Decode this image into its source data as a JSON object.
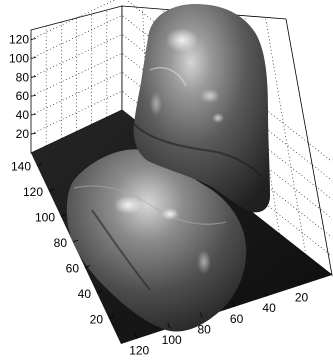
{
  "chart_data": {
    "type": "surface",
    "title": "",
    "xlabel": "",
    "ylabel": "",
    "zlabel": "",
    "grid": true,
    "colormap": "gray",
    "shading": "interp",
    "lighting": "phong",
    "view": "3-D rotated, raised viewing angle",
    "x_axis": {
      "lim": [
        0,
        130
      ],
      "ticks": [
        120,
        100,
        80,
        60,
        40,
        20
      ]
    },
    "y_axis": {
      "lim": [
        0,
        150
      ],
      "ticks": [
        140,
        120,
        100,
        80,
        60,
        40,
        20
      ]
    },
    "z_axis": {
      "lim": [
        0,
        130
      ],
      "ticks": [
        120,
        100,
        80,
        60,
        40,
        20
      ]
    },
    "surface_description": "height map of two rounded mounds rising from a flat floor (z = 0)",
    "surface_peaks": [
      {
        "name": "tall rounded mound",
        "approx_peak_z": 125
      },
      {
        "name": "low rounded mound",
        "approx_peak_z": 45
      }
    ]
  }
}
